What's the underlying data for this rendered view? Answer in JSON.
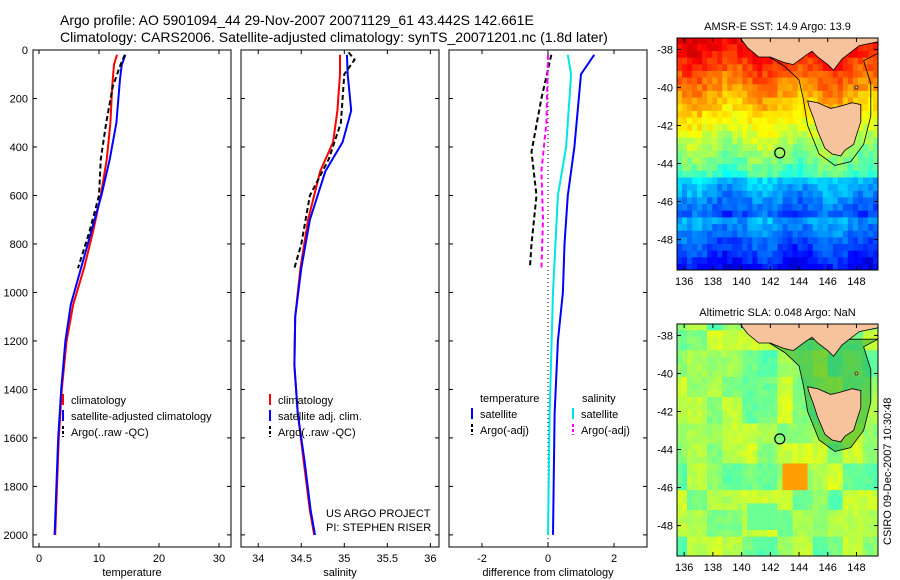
{
  "header": {
    "line1": "Argo profile: AO 5901094_44 29-Nov-2007 20071129_61 43.442S 142.661E",
    "line2": "Climatology: CARS2006. Satellite-adjusted climatology: synTS_20071201.nc (1.8d later)"
  },
  "side_stamp": "CSIRO 09-Dec-2007 10:30:48",
  "credit": {
    "line1": "US ARGO PROJECT",
    "line2": "PI: STEPHEN RISER"
  },
  "colors": {
    "climatology": "#ff0000",
    "satellite": "#0000ff",
    "argo": "#000000",
    "sat_diff": "#00e5e5",
    "argo_diff": "#ff00ff",
    "land": "#f6c39c",
    "map_border": "#000000"
  },
  "chart_data": [
    {
      "type": "line",
      "xlabel": "temperature",
      "ylabel": "",
      "xlim": [
        -1,
        32
      ],
      "ylim": [
        2050,
        0
      ],
      "xticks": [
        "0",
        "10",
        "20",
        "30"
      ],
      "xtick_values": [
        0,
        10,
        20,
        30
      ],
      "yticks": [
        "0",
        "200",
        "400",
        "600",
        "800",
        "1000",
        "1200",
        "1400",
        "1600",
        "1800",
        "2000"
      ],
      "ytick_values": [
        0,
        200,
        400,
        600,
        800,
        1000,
        1200,
        1400,
        1600,
        1800,
        2000
      ],
      "legend": {
        "placement": "center-left",
        "entries": [
          {
            "label": "climatology",
            "color": "#ff0000",
            "dash": false
          },
          {
            "label": "satellite-adjusted climatology",
            "color": "#0000ff",
            "dash": false
          },
          {
            "label": "Argo(..raw -QC)",
            "color": "#000000",
            "dash": true
          }
        ]
      },
      "series": [
        {
          "name": "climatology",
          "color": "#ff0000",
          "dash": false,
          "points": [
            [
              13.0,
              20
            ],
            [
              12.5,
              60
            ],
            [
              12.2,
              150
            ],
            [
              11.9,
              300
            ],
            [
              11.3,
              450
            ],
            [
              10.3,
              600
            ],
            [
              9.0,
              750
            ],
            [
              7.5,
              900
            ],
            [
              5.7,
              1050
            ],
            [
              4.6,
              1200
            ],
            [
              3.8,
              1400
            ],
            [
              3.3,
              1600
            ],
            [
              3.0,
              1800
            ],
            [
              2.7,
              2000
            ]
          ]
        },
        {
          "name": "satellite-adjusted climatology",
          "color": "#0000ff",
          "dash": false,
          "points": [
            [
              14.4,
              20
            ],
            [
              13.8,
              60
            ],
            [
              13.5,
              120
            ],
            [
              12.9,
              300
            ],
            [
              11.8,
              450
            ],
            [
              10.4,
              600
            ],
            [
              8.7,
              750
            ],
            [
              7.0,
              900
            ],
            [
              5.3,
              1050
            ],
            [
              4.4,
              1200
            ],
            [
              3.7,
              1400
            ],
            [
              3.2,
              1600
            ],
            [
              2.9,
              1800
            ],
            [
              2.6,
              2000
            ]
          ]
        },
        {
          "name": "Argo(..raw -QC)",
          "color": "#000000",
          "dash": true,
          "points": [
            [
              14.3,
              20
            ],
            [
              13.6,
              60
            ],
            [
              12.3,
              150
            ],
            [
              11.2,
              300
            ],
            [
              10.3,
              450
            ],
            [
              10.0,
              600
            ],
            [
              8.4,
              750
            ],
            [
              6.5,
              900
            ]
          ]
        }
      ]
    },
    {
      "type": "line",
      "xlabel": "salinity",
      "ylabel": "",
      "xlim": [
        33.8,
        36.1
      ],
      "ylim": [
        2050,
        0
      ],
      "xticks": [
        "34",
        "34.5",
        "35",
        "35.5",
        "36"
      ],
      "xtick_values": [
        34,
        34.5,
        35,
        35.5,
        36
      ],
      "legend": {
        "placement": "center-right",
        "entries": [
          {
            "label": "climatology",
            "color": "#ff0000",
            "dash": false
          },
          {
            "label": "satellite adj. clim.",
            "color": "#0000ff",
            "dash": false
          },
          {
            "label": "Argo(..raw -QC)",
            "color": "#000000",
            "dash": true
          }
        ]
      },
      "series": [
        {
          "name": "climatology",
          "color": "#ff0000",
          "dash": false,
          "points": [
            [
              34.95,
              20
            ],
            [
              34.95,
              100
            ],
            [
              34.92,
              250
            ],
            [
              34.87,
              380
            ],
            [
              34.72,
              500
            ],
            [
              34.58,
              700
            ],
            [
              34.49,
              900
            ],
            [
              34.43,
              1100
            ],
            [
              34.42,
              1300
            ],
            [
              34.46,
              1500
            ],
            [
              34.53,
              1700
            ],
            [
              34.6,
              1900
            ],
            [
              34.65,
              2000
            ]
          ]
        },
        {
          "name": "satellite adj. clim.",
          "color": "#0000ff",
          "dash": false,
          "points": [
            [
              35.03,
              20
            ],
            [
              35.04,
              100
            ],
            [
              35.08,
              250
            ],
            [
              34.98,
              380
            ],
            [
              34.78,
              500
            ],
            [
              34.6,
              700
            ],
            [
              34.5,
              900
            ],
            [
              34.43,
              1100
            ],
            [
              34.42,
              1300
            ],
            [
              34.46,
              1500
            ],
            [
              34.54,
              1700
            ],
            [
              34.61,
              1900
            ],
            [
              34.66,
              2000
            ]
          ]
        },
        {
          "name": "Argo(..raw -QC)",
          "color": "#000000",
          "dash": true,
          "points": [
            [
              35.05,
              10
            ],
            [
              35.12,
              40
            ],
            [
              35.0,
              100
            ],
            [
              34.96,
              300
            ],
            [
              34.82,
              450
            ],
            [
              34.6,
              600
            ],
            [
              34.55,
              700
            ],
            [
              34.5,
              800
            ],
            [
              34.42,
              900
            ]
          ]
        }
      ]
    },
    {
      "type": "line",
      "xlabel": "difference from climatology",
      "ylabel": "",
      "xlim": [
        -3,
        3
      ],
      "ylim": [
        2050,
        0
      ],
      "xticks": [
        "-2",
        "0",
        "2"
      ],
      "xtick_values": [
        -2,
        0,
        2
      ],
      "zero_line": true,
      "legend": {
        "placement": "center",
        "headers": [
          "temperature",
          "salinity"
        ],
        "entries": [
          {
            "label": "satellite",
            "color": "#0000ff",
            "dash": false
          },
          {
            "label": "Argo(-adj)",
            "color": "#000000",
            "dash": true
          },
          {
            "label": "satellite",
            "color": "#00e5e5",
            "dash": false
          },
          {
            "label": "Argo(-adj)",
            "color": "#ff00ff",
            "dash": true
          }
        ]
      },
      "series": [
        {
          "name": "temperature satellite",
          "color": "#0000ff",
          "dash": false,
          "points": [
            [
              1.4,
              20
            ],
            [
              1.0,
              100
            ],
            [
              0.9,
              250
            ],
            [
              0.8,
              400
            ],
            [
              0.6,
              600
            ],
            [
              0.5,
              800
            ],
            [
              0.45,
              1000
            ],
            [
              0.3,
              1200
            ],
            [
              0.2,
              1500
            ],
            [
              0.15,
              2000
            ]
          ]
        },
        {
          "name": "temperature Argo(-adj)",
          "color": "#000000",
          "dash": true,
          "points": [
            [
              0.1,
              20
            ],
            [
              -0.2,
              200
            ],
            [
              -0.5,
              420
            ],
            [
              -0.35,
              600
            ],
            [
              -0.5,
              800
            ],
            [
              -0.55,
              900
            ]
          ]
        },
        {
          "name": "salinity satellite",
          "color": "#00e5e5",
          "dash": false,
          "points": [
            [
              0.6,
              20
            ],
            [
              0.7,
              100
            ],
            [
              0.6,
              300
            ],
            [
              0.55,
              400
            ],
            [
              0.3,
              600
            ],
            [
              0.15,
              1000
            ],
            [
              0.05,
              1500
            ],
            [
              0.0,
              2000
            ]
          ]
        },
        {
          "name": "salinity Argo(-adj)",
          "color": "#ff00ff",
          "dash": true,
          "points": [
            [
              0.0,
              20
            ],
            [
              -0.05,
              300
            ],
            [
              -0.2,
              500
            ],
            [
              -0.15,
              700
            ],
            [
              -0.2,
              900
            ]
          ]
        }
      ]
    },
    {
      "type": "heatmap",
      "title": "AMSR-E SST: 14.9 Argo: 13.9",
      "xlim": [
        135.5,
        149.5
      ],
      "ylim": [
        -49.6,
        -37.4
      ],
      "xticks": [
        "136",
        "138",
        "140",
        "142",
        "144",
        "146",
        "148"
      ],
      "xtick_values": [
        136,
        138,
        140,
        142,
        144,
        146,
        148
      ],
      "yticks": [
        "-38",
        "-40",
        "-42",
        "-44",
        "-46",
        "-48"
      ],
      "ytick_values": [
        -38,
        -40,
        -42,
        -44,
        -46,
        -48
      ],
      "marker": {
        "lon": 142.66,
        "lat": -43.44
      },
      "colorscale": "jet",
      "value_range_by_lat": [
        [
          -38,
          "warm"
        ],
        [
          -43,
          "mid"
        ],
        [
          -48,
          "cool"
        ]
      ]
    },
    {
      "type": "heatmap",
      "title": "Altimetric SLA: 0.048 Argo: NaN",
      "xlim": [
        135.5,
        149.5
      ],
      "ylim": [
        -49.6,
        -37.4
      ],
      "xticks": [
        "136",
        "138",
        "140",
        "142",
        "144",
        "146",
        "148"
      ],
      "xtick_values": [
        136,
        138,
        140,
        142,
        144,
        146,
        148
      ],
      "yticks": [
        "-38",
        "-40",
        "-42",
        "-44",
        "-46",
        "-48"
      ],
      "ytick_values": [
        -38,
        -40,
        -42,
        -44,
        -46,
        -48
      ],
      "marker": {
        "lon": 142.66,
        "lat": -43.44
      },
      "colorscale": "jet",
      "value_range_by_lat": [
        [
          -38,
          "mid"
        ],
        [
          -48,
          "mid"
        ]
      ]
    }
  ]
}
